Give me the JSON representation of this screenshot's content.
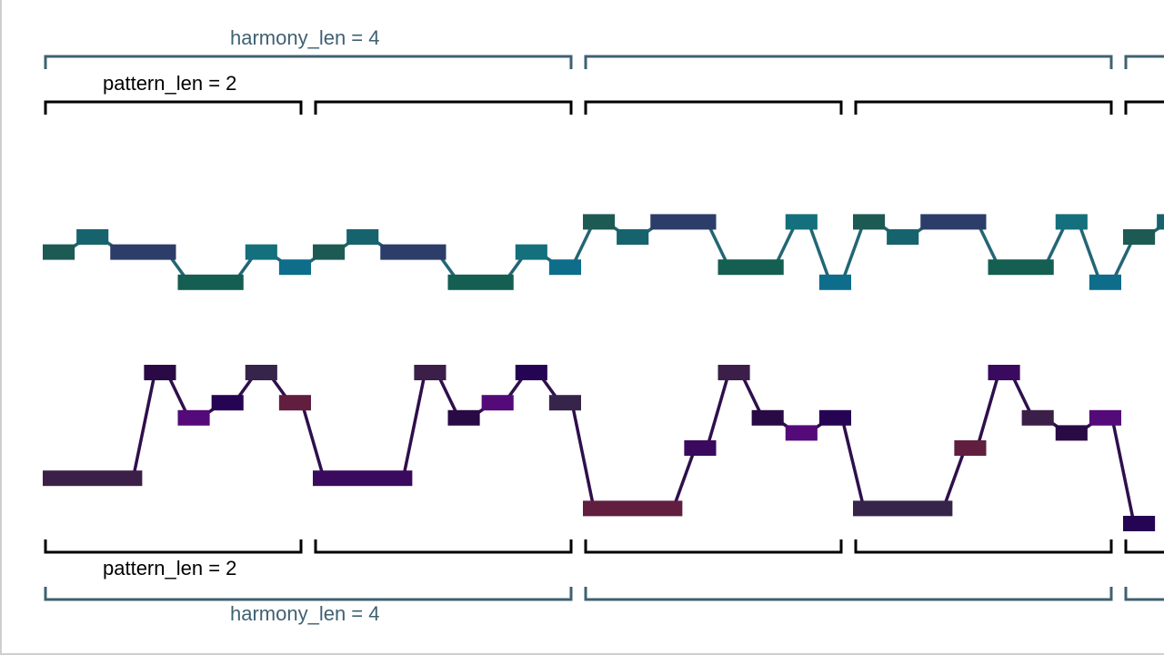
{
  "labels": {
    "harmony_top": "harmony_len = 4",
    "pattern_top": "pattern_len = 2",
    "pattern_bottom": "pattern_len = 2",
    "harmony_bottom": "harmony_len = 4"
  },
  "colors": {
    "harmony_bracket": "#3f6172",
    "harmony_text": "#3f6172",
    "pattern_bracket": "#000000",
    "pattern_text": "#000000",
    "upper_line": "#236675",
    "lower_line": "#2f0f4c"
  },
  "beats": {
    "beat_unit": "pattern_len",
    "harmony_len": 4,
    "pattern_len": 2
  },
  "upper_melody": {
    "notes": [
      {
        "t": 0.0,
        "dur": 0.25,
        "pitch": 4,
        "color": "#1d5a53"
      },
      {
        "t": 0.25,
        "dur": 0.25,
        "pitch": 5,
        "color": "#16626d"
      },
      {
        "t": 0.5,
        "dur": 0.5,
        "pitch": 4,
        "color": "#2b3d68"
      },
      {
        "t": 1.0,
        "dur": 0.5,
        "pitch": 2,
        "color": "#145e52"
      },
      {
        "t": 1.5,
        "dur": 0.25,
        "pitch": 4,
        "color": "#13707c"
      },
      {
        "t": 1.75,
        "dur": 0.25,
        "pitch": 3,
        "color": "#0e6d8b"
      },
      {
        "t": 2.0,
        "dur": 0.25,
        "pitch": 4,
        "color": "#1d5a53"
      },
      {
        "t": 2.25,
        "dur": 0.25,
        "pitch": 5,
        "color": "#16626d"
      },
      {
        "t": 2.5,
        "dur": 0.5,
        "pitch": 4,
        "color": "#2b3d68"
      },
      {
        "t": 3.0,
        "dur": 0.5,
        "pitch": 2,
        "color": "#145e52"
      },
      {
        "t": 3.5,
        "dur": 0.25,
        "pitch": 4,
        "color": "#13707c"
      },
      {
        "t": 3.75,
        "dur": 0.25,
        "pitch": 3,
        "color": "#0e6d8b"
      },
      {
        "t": 4.0,
        "dur": 0.25,
        "pitch": 6,
        "color": "#1d5a53"
      },
      {
        "t": 4.25,
        "dur": 0.25,
        "pitch": 5,
        "color": "#16626d"
      },
      {
        "t": 4.5,
        "dur": 0.5,
        "pitch": 6,
        "color": "#2b3d68"
      },
      {
        "t": 5.0,
        "dur": 0.5,
        "pitch": 3,
        "color": "#145e52"
      },
      {
        "t": 5.5,
        "dur": 0.25,
        "pitch": 6,
        "color": "#13707c"
      },
      {
        "t": 5.75,
        "dur": 0.25,
        "pitch": 2,
        "color": "#0e6d8b"
      },
      {
        "t": 6.0,
        "dur": 0.25,
        "pitch": 6,
        "color": "#1d5a53"
      },
      {
        "t": 6.25,
        "dur": 0.25,
        "pitch": 5,
        "color": "#16626d"
      },
      {
        "t": 6.5,
        "dur": 0.5,
        "pitch": 6,
        "color": "#2b3d68"
      },
      {
        "t": 7.0,
        "dur": 0.5,
        "pitch": 3,
        "color": "#145e52"
      },
      {
        "t": 7.5,
        "dur": 0.25,
        "pitch": 6,
        "color": "#13707c"
      },
      {
        "t": 7.75,
        "dur": 0.25,
        "pitch": 2,
        "color": "#0e6d8b"
      },
      {
        "t": 8.0,
        "dur": 0.25,
        "pitch": 5,
        "color": "#1d5a53"
      },
      {
        "t": 8.25,
        "dur": 0.25,
        "pitch": 6,
        "color": "#16626d"
      }
    ]
  },
  "lower_melody": {
    "notes": [
      {
        "t": 0.0,
        "dur": 0.75,
        "pitch": 3,
        "color": "#3c1f48"
      },
      {
        "t": 0.75,
        "dur": 0.25,
        "pitch": 10,
        "color": "#2a0a44"
      },
      {
        "t": 1.0,
        "dur": 0.25,
        "pitch": 7,
        "color": "#540a78"
      },
      {
        "t": 1.25,
        "dur": 0.25,
        "pitch": 8,
        "color": "#260454"
      },
      {
        "t": 1.5,
        "dur": 0.25,
        "pitch": 10,
        "color": "#36244a"
      },
      {
        "t": 1.75,
        "dur": 0.25,
        "pitch": 8,
        "color": "#611e3f"
      },
      {
        "t": 2.0,
        "dur": 0.75,
        "pitch": 3,
        "color": "#3a0a5e"
      },
      {
        "t": 2.75,
        "dur": 0.25,
        "pitch": 10,
        "color": "#3c1f48"
      },
      {
        "t": 3.0,
        "dur": 0.25,
        "pitch": 7,
        "color": "#2a0a44"
      },
      {
        "t": 3.25,
        "dur": 0.25,
        "pitch": 8,
        "color": "#540a78"
      },
      {
        "t": 3.5,
        "dur": 0.25,
        "pitch": 10,
        "color": "#260454"
      },
      {
        "t": 3.75,
        "dur": 0.25,
        "pitch": 8,
        "color": "#36244a"
      },
      {
        "t": 4.0,
        "dur": 0.75,
        "pitch": 1,
        "color": "#611e3f"
      },
      {
        "t": 4.75,
        "dur": 0.25,
        "pitch": 5,
        "color": "#3a0a5e"
      },
      {
        "t": 5.0,
        "dur": 0.25,
        "pitch": 10,
        "color": "#3c1f48"
      },
      {
        "t": 5.25,
        "dur": 0.25,
        "pitch": 7,
        "color": "#2a0a44"
      },
      {
        "t": 5.5,
        "dur": 0.25,
        "pitch": 6,
        "color": "#540a78"
      },
      {
        "t": 5.75,
        "dur": 0.25,
        "pitch": 7,
        "color": "#260454"
      },
      {
        "t": 6.0,
        "dur": 0.75,
        "pitch": 1,
        "color": "#36244a"
      },
      {
        "t": 6.75,
        "dur": 0.25,
        "pitch": 5,
        "color": "#611e3f"
      },
      {
        "t": 7.0,
        "dur": 0.25,
        "pitch": 10,
        "color": "#3a0a5e"
      },
      {
        "t": 7.25,
        "dur": 0.25,
        "pitch": 7,
        "color": "#3c1f48"
      },
      {
        "t": 7.5,
        "dur": 0.25,
        "pitch": 6,
        "color": "#2a0a44"
      },
      {
        "t": 7.75,
        "dur": 0.25,
        "pitch": 7,
        "color": "#540a78"
      },
      {
        "t": 8.0,
        "dur": 0.25,
        "pitch": 0,
        "color": "#260454"
      }
    ]
  }
}
